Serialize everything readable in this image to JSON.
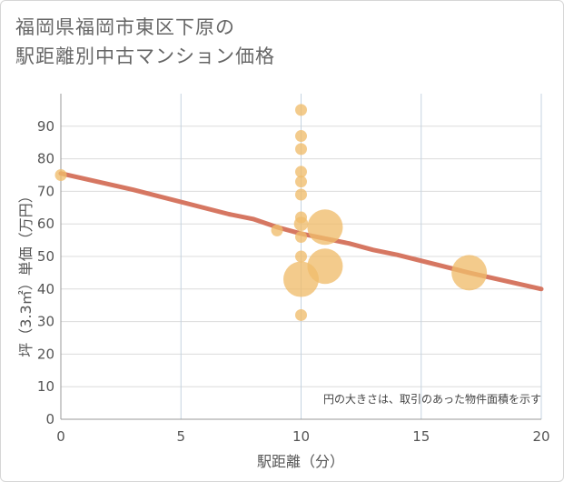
{
  "title": {
    "line1": "福岡県福岡市東区下原の",
    "line2": "駅距離別中古マンション価格"
  },
  "chart_data": {
    "type": "scatter",
    "xlabel": "駅距離（分）",
    "ylabel": "坪（3.3㎡）単価（万円）",
    "xlim": [
      0,
      20
    ],
    "ylim": [
      0,
      100
    ],
    "xticks": [
      0,
      5,
      10,
      15,
      20
    ],
    "yticks": [
      0,
      10,
      20,
      30,
      40,
      50,
      60,
      70,
      80,
      90
    ],
    "grid": true,
    "note": "円の大きさは、取引のあった物件面積を示す",
    "bubble_color": "#f0bd6c",
    "trend_color": "#d4705a",
    "points": [
      {
        "x": 0,
        "y": 75,
        "size": 1
      },
      {
        "x": 9,
        "y": 58,
        "size": 1
      },
      {
        "x": 10,
        "y": 95,
        "size": 1
      },
      {
        "x": 10,
        "y": 87,
        "size": 1
      },
      {
        "x": 10,
        "y": 83,
        "size": 1
      },
      {
        "x": 10,
        "y": 76,
        "size": 1
      },
      {
        "x": 10,
        "y": 73,
        "size": 1
      },
      {
        "x": 10,
        "y": 69,
        "size": 1
      },
      {
        "x": 10,
        "y": 62,
        "size": 1
      },
      {
        "x": 10,
        "y": 60,
        "size": 1.2
      },
      {
        "x": 10,
        "y": 56,
        "size": 1
      },
      {
        "x": 10,
        "y": 50,
        "size": 1
      },
      {
        "x": 10,
        "y": 43,
        "size": 3
      },
      {
        "x": 10,
        "y": 32,
        "size": 1
      },
      {
        "x": 11,
        "y": 59,
        "size": 3
      },
      {
        "x": 11,
        "y": 47,
        "size": 3
      },
      {
        "x": 17,
        "y": 45,
        "size": 3
      }
    ],
    "trend": [
      {
        "x": 0,
        "y": 75.5
      },
      {
        "x": 3,
        "y": 70.5
      },
      {
        "x": 7,
        "y": 63
      },
      {
        "x": 8,
        "y": 61.5
      },
      {
        "x": 9,
        "y": 59
      },
      {
        "x": 10,
        "y": 57
      },
      {
        "x": 11,
        "y": 55.5
      },
      {
        "x": 12,
        "y": 54
      },
      {
        "x": 13,
        "y": 52
      },
      {
        "x": 14,
        "y": 50.5
      },
      {
        "x": 17,
        "y": 45
      },
      {
        "x": 20,
        "y": 40
      }
    ]
  }
}
